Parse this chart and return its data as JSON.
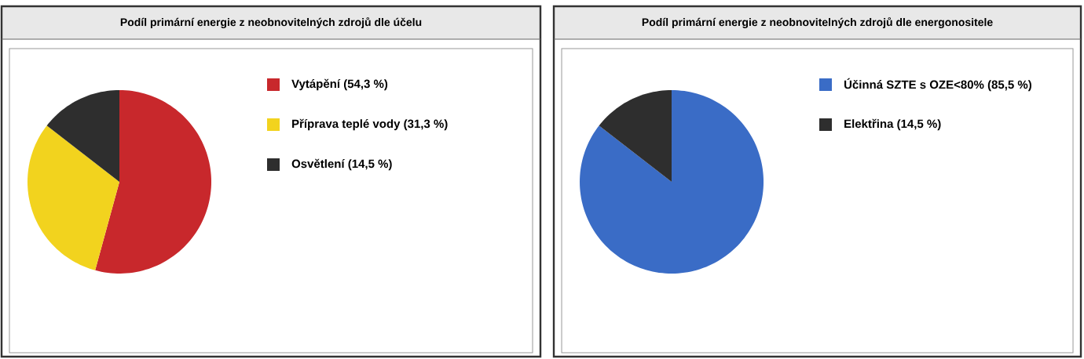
{
  "chart_data": [
    {
      "type": "pie",
      "title": "Podíl primární energie z neobnovitelných zdrojů dle účelu",
      "categories": [
        "Vytápění (54,3 %)",
        "Příprava teplé vody (31,3 %)",
        "Osvětlení (14,5 %)"
      ],
      "values": [
        54.3,
        31.3,
        14.5
      ],
      "colors": [
        "#c8282c",
        "#f2d31e",
        "#2e2e2e"
      ],
      "legend": "right"
    },
    {
      "type": "pie",
      "title": "Podíl primární energie z neobnovitelných zdrojů dle energonositele",
      "categories": [
        "Účinná SZTE s OZE<80% (85,5 %)",
        "Elektřina (14,5 %)"
      ],
      "values": [
        85.5,
        14.5
      ],
      "colors": [
        "#3a6cc6",
        "#2e2e2e"
      ],
      "legend": "right"
    }
  ]
}
